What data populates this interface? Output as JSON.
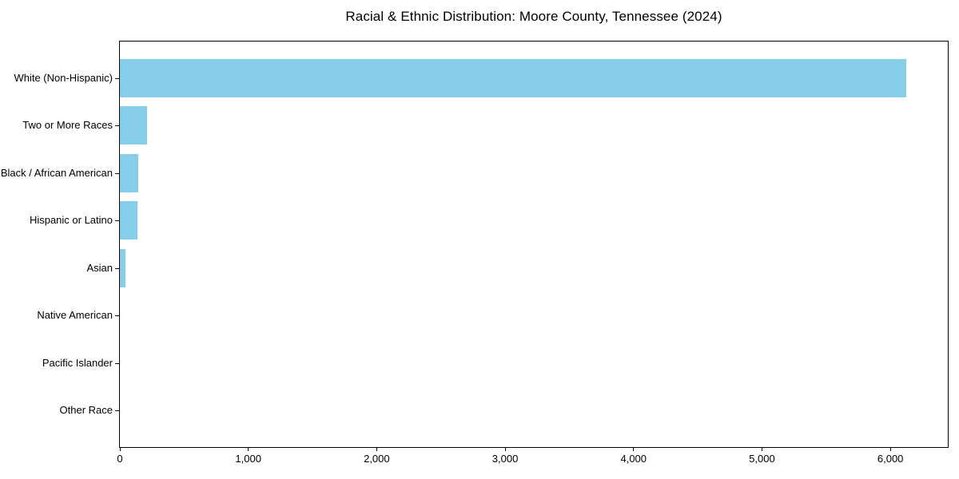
{
  "chart_data": {
    "type": "bar",
    "orientation": "horizontal",
    "title": "Racial & Ethnic Distribution: Moore County, Tennessee (2024)",
    "categories": [
      "White (Non-Hispanic)",
      "Two or More Races",
      "Black / African American",
      "Hispanic or Latino",
      "Asian",
      "Native American",
      "Pacific Islander",
      "Other Race"
    ],
    "values": [
      6125,
      211,
      141,
      136,
      42,
      0,
      0,
      0
    ],
    "bar_color": "#87CEEB",
    "xlabel": "",
    "ylabel": "",
    "xlim": [
      0,
      6447
    ],
    "x_ticks": [
      0,
      1000,
      2000,
      3000,
      4000,
      5000,
      6000
    ],
    "x_tick_labels": [
      "0",
      "1,000",
      "2,000",
      "3,000",
      "4,000",
      "5,000",
      "6,000"
    ],
    "grid": false,
    "background_color": "#ffffff",
    "spine_color": "#000000",
    "text_color": "#000000"
  }
}
